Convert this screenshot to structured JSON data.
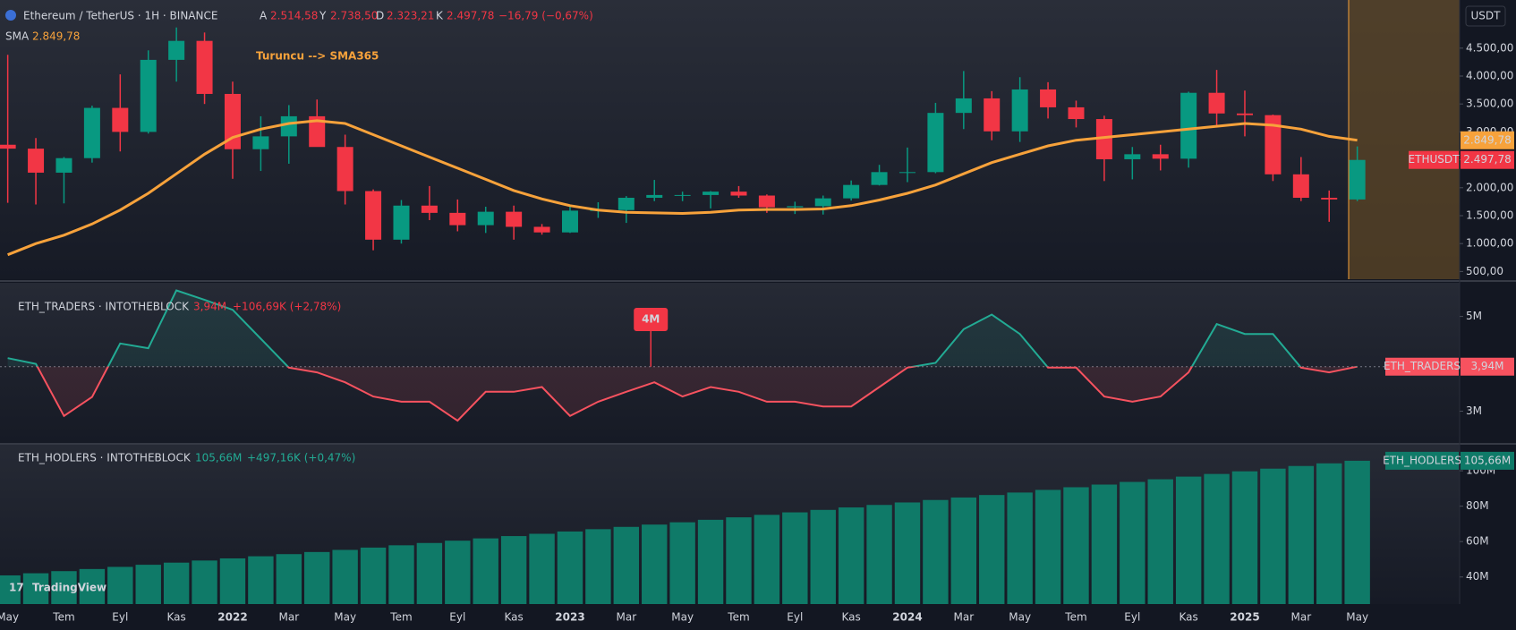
{
  "header": {
    "symbol": "Ethereum / TetherUS · 1H · BINANCE",
    "ohlc": [
      {
        "key": "A",
        "value": "2.514,58"
      },
      {
        "key": "Y",
        "value": "2.738,50"
      },
      {
        "key": "D",
        "value": "2.323,21"
      },
      {
        "key": "K",
        "value": "2.497,78"
      }
    ],
    "change": "−16,79 (−0,67%)",
    "currency": "USDT",
    "brand": "TradingView"
  },
  "chart_data": [
    {
      "type": "candlestick",
      "x": [
        "2021-05",
        "2021-06",
        "2021-07",
        "2021-08",
        "2021-09",
        "2021-10",
        "2021-11",
        "2021-12",
        "2022-01",
        "2022-02",
        "2022-03",
        "2022-04",
        "2022-05",
        "2022-06",
        "2022-07",
        "2022-08",
        "2022-09",
        "2022-10",
        "2022-11",
        "2022-12",
        "2023-01",
        "2023-02",
        "2023-03",
        "2023-04",
        "2023-05",
        "2023-06",
        "2023-07",
        "2023-08",
        "2023-09",
        "2023-10",
        "2023-11",
        "2023-12",
        "2024-01",
        "2024-02",
        "2024-03",
        "2024-04",
        "2024-05",
        "2024-06",
        "2024-07",
        "2024-08",
        "2024-09",
        "2024-10",
        "2024-11",
        "2024-12",
        "2025-01",
        "2025-02",
        "2025-03",
        "2025-04",
        "2025-05"
      ],
      "open": [
        2770,
        2700,
        2270,
        2530,
        3430,
        3000,
        4290,
        4630,
        3680,
        2690,
        2920,
        3280,
        2730,
        1940,
        1070,
        1680,
        1550,
        1330,
        1570,
        1300,
        1200,
        1590,
        1600,
        1820,
        1870,
        1870,
        1930,
        1860,
        1650,
        1670,
        1810,
        2050,
        2280,
        2280,
        3340,
        3600,
        3010,
        3760,
        3440,
        3230,
        2510,
        2600,
        2520,
        3700,
        3330,
        3300,
        2240,
        1820,
        1790
      ],
      "high": [
        4380,
        2890,
        2550,
        3470,
        4030,
        4460,
        4870,
        4780,
        3900,
        3280,
        3480,
        3580,
        2950,
        1970,
        1780,
        2030,
        1790,
        1660,
        1680,
        1350,
        1680,
        1740,
        1850,
        2140,
        1930,
        1940,
        2030,
        1880,
        1750,
        1860,
        2130,
        2410,
        2720,
        3520,
        4090,
        3730,
        3980,
        3890,
        3560,
        3290,
        2730,
        2770,
        3720,
        4110,
        3740,
        3310,
        2550,
        1950,
        2740
      ],
      "low": [
        1730,
        1700,
        1720,
        2450,
        2650,
        2970,
        3900,
        3500,
        2160,
        2300,
        2430,
        2780,
        1700,
        880,
        1000,
        1420,
        1220,
        1190,
        1070,
        1160,
        1190,
        1460,
        1370,
        1760,
        1760,
        1630,
        1820,
        1550,
        1530,
        1520,
        1770,
        2040,
        2100,
        2260,
        3050,
        2850,
        2820,
        3240,
        3080,
        2120,
        2150,
        2310,
        2360,
        3100,
        2920,
        2120,
        1760,
        1390,
        1760
      ],
      "close": [
        2700,
        2270,
        2530,
        3430,
        3000,
        4290,
        4630,
        3680,
        2690,
        2920,
        3280,
        2730,
        1940,
        1070,
        1680,
        1550,
        1330,
        1570,
        1300,
        1200,
        1590,
        1600,
        1820,
        1870,
        1870,
        1930,
        1860,
        1650,
        1670,
        1810,
        2050,
        2280,
        2280,
        3340,
        3600,
        3010,
        3760,
        3440,
        3230,
        2510,
        2600,
        2520,
        3700,
        3330,
        3300,
        2240,
        1820,
        1790,
        2497.78
      ],
      "up_color": "#089981",
      "down_color": "#f23645",
      "series": [
        {
          "name": "SMA",
          "color": "#f7a23b",
          "values": [
            800,
            1000,
            1150,
            1350,
            1600,
            1900,
            2250,
            2600,
            2900,
            3050,
            3150,
            3200,
            3150,
            2950,
            2750,
            2550,
            2350,
            2150,
            1950,
            1800,
            1680,
            1600,
            1560,
            1550,
            1540,
            1560,
            1600,
            1610,
            1610,
            1620,
            1680,
            1780,
            1900,
            2050,
            2250,
            2450,
            2600,
            2750,
            2850,
            2900,
            2950,
            3000,
            3050,
            3100,
            3150,
            3120,
            3050,
            2920,
            2850
          ]
        }
      ],
      "sma_tag": {
        "value": 2849.78,
        "label": "2.849,78"
      },
      "last_price": {
        "name": "ETHUSDT",
        "value": 2497.78,
        "label": "2.497,78"
      },
      "annotation": "Turuncu --> SMA365",
      "ylim": [
        362,
        5362
      ],
      "yticks": [
        {
          "value": 4500,
          "label": "4.500,00"
        },
        {
          "value": 4000,
          "label": "4.000,00"
        },
        {
          "value": 3500,
          "label": "3.500,00"
        },
        {
          "value": 3000,
          "label": "3.000,00"
        },
        {
          "value": 2500,
          "label": "2.500,00"
        },
        {
          "value": 2000,
          "label": "2.000,00"
        },
        {
          "value": 1500,
          "label": "1.500,00"
        },
        {
          "value": 1000,
          "label": "1.000,00"
        },
        {
          "value": 500,
          "label": "500,00"
        }
      ],
      "xticks": [
        {
          "value": "2021-05",
          "label": "May"
        },
        {
          "value": "2021-07",
          "label": "Tem"
        },
        {
          "value": "2021-09",
          "label": "Eyl"
        },
        {
          "value": "2021-11",
          "label": "Kas"
        },
        {
          "value": "2022-01",
          "label": "2022"
        },
        {
          "value": "2022-03",
          "label": "Mar"
        },
        {
          "value": "2022-05",
          "label": "May"
        },
        {
          "value": "2022-07",
          "label": "Tem"
        },
        {
          "value": "2022-09",
          "label": "Eyl"
        },
        {
          "value": "2022-11",
          "label": "Kas"
        },
        {
          "value": "2023-01",
          "label": "2023"
        },
        {
          "value": "2023-03",
          "label": "Mar"
        },
        {
          "value": "2023-05",
          "label": "May"
        },
        {
          "value": "2023-07",
          "label": "Tem"
        },
        {
          "value": "2023-09",
          "label": "Eyl"
        },
        {
          "value": "2023-11",
          "label": "Kas"
        },
        {
          "value": "2024-01",
          "label": "2024"
        },
        {
          "value": "2024-03",
          "label": "Mar"
        },
        {
          "value": "2024-05",
          "label": "May"
        },
        {
          "value": "2024-07",
          "label": "Tem"
        },
        {
          "value": "2024-09",
          "label": "Eyl"
        },
        {
          "value": "2024-11",
          "label": "Kas"
        },
        {
          "value": "2025-01",
          "label": "2025"
        },
        {
          "value": "2025-03",
          "label": "Mar"
        },
        {
          "value": "2025-05",
          "label": "May"
        }
      ]
    },
    {
      "type": "line",
      "title": "ETH_TRADERS · INTOTHEBLOCK",
      "name": "ETH_TRADERS",
      "last_label": "3,94M",
      "change": "+106,69K (+2,78%)",
      "annotation": "4M",
      "up_color": "#22ab94",
      "down_color": "#f7525f",
      "x": [
        "2021-05",
        "2021-06",
        "2021-07",
        "2021-08",
        "2021-09",
        "2021-10",
        "2021-11",
        "2021-12",
        "2022-01",
        "2022-02",
        "2022-03",
        "2022-04",
        "2022-05",
        "2022-06",
        "2022-07",
        "2022-08",
        "2022-09",
        "2022-10",
        "2022-11",
        "2022-12",
        "2023-01",
        "2023-02",
        "2023-03",
        "2023-04",
        "2023-05",
        "2023-06",
        "2023-07",
        "2023-08",
        "2023-09",
        "2023-10",
        "2023-11",
        "2023-12",
        "2024-01",
        "2024-02",
        "2024-03",
        "2024-04",
        "2024-05",
        "2024-06",
        "2024-07",
        "2024-08",
        "2024-09",
        "2024-10",
        "2024-11",
        "2024-12",
        "2025-01",
        "2025-02",
        "2025-03",
        "2025-04",
        "2025-05"
      ],
      "values": [
        4.12,
        4.0,
        2.9,
        3.3,
        4.43,
        4.33,
        5.55,
        5.35,
        5.14,
        4.53,
        3.92,
        3.82,
        3.61,
        3.31,
        3.2,
        3.2,
        2.8,
        3.41,
        3.41,
        3.51,
        2.9,
        3.2,
        3.41,
        3.61,
        3.31,
        3.51,
        3.41,
        3.2,
        3.2,
        3.1,
        3.1,
        3.51,
        3.92,
        4.02,
        4.73,
        5.04,
        4.63,
        3.92,
        3.92,
        3.31,
        3.2,
        3.31,
        3.82,
        4.84,
        4.63,
        4.63,
        3.92,
        3.82,
        3.94
      ],
      "ylim": [
        2.33,
        5.71
      ],
      "yticks": [
        {
          "value": 5,
          "label": "5M"
        },
        {
          "value": 3,
          "label": "3M"
        }
      ]
    },
    {
      "type": "bar",
      "title": "ETH_HODLERS · INTOTHEBLOCK",
      "name": "ETH_HODLERS",
      "last_label": "105,66M",
      "change": "+497,16K (+0,47%)",
      "color": "#0f7a68",
      "x": [
        "2021-05",
        "2021-06",
        "2021-07",
        "2021-08",
        "2021-09",
        "2021-10",
        "2021-11",
        "2021-12",
        "2022-01",
        "2022-02",
        "2022-03",
        "2022-04",
        "2022-05",
        "2022-06",
        "2022-07",
        "2022-08",
        "2022-09",
        "2022-10",
        "2022-11",
        "2022-12",
        "2023-01",
        "2023-02",
        "2023-03",
        "2023-04",
        "2023-05",
        "2023-06",
        "2023-07",
        "2023-08",
        "2023-09",
        "2023-10",
        "2023-11",
        "2023-12",
        "2024-01",
        "2024-02",
        "2024-03",
        "2024-04",
        "2024-05",
        "2024-06",
        "2024-07",
        "2024-08",
        "2024-09",
        "2024-10",
        "2024-11",
        "2024-12",
        "2025-01",
        "2025-02",
        "2025-03",
        "2025-04",
        "2025-05"
      ],
      "values": [
        40.9,
        42.1,
        43.3,
        44.5,
        45.7,
        46.9,
        48.1,
        49.3,
        50.5,
        51.7,
        52.9,
        54.1,
        55.3,
        56.6,
        57.9,
        59.2,
        60.5,
        61.8,
        63.1,
        64.4,
        65.7,
        67.0,
        68.3,
        69.6,
        70.9,
        72.3,
        73.7,
        75.1,
        76.5,
        77.9,
        79.3,
        80.7,
        82.1,
        83.5,
        84.9,
        86.3,
        87.7,
        89.2,
        90.7,
        92.2,
        93.7,
        95.2,
        96.7,
        98.2,
        99.7,
        101.2,
        102.7,
        104.2,
        105.66
      ],
      "ylim": [
        24.7,
        114.7
      ],
      "yticks": [
        {
          "value": 100,
          "label": "100M"
        },
        {
          "value": 80,
          "label": "80M"
        },
        {
          "value": 60,
          "label": "60M"
        },
        {
          "value": 40,
          "label": "40M"
        }
      ]
    }
  ]
}
